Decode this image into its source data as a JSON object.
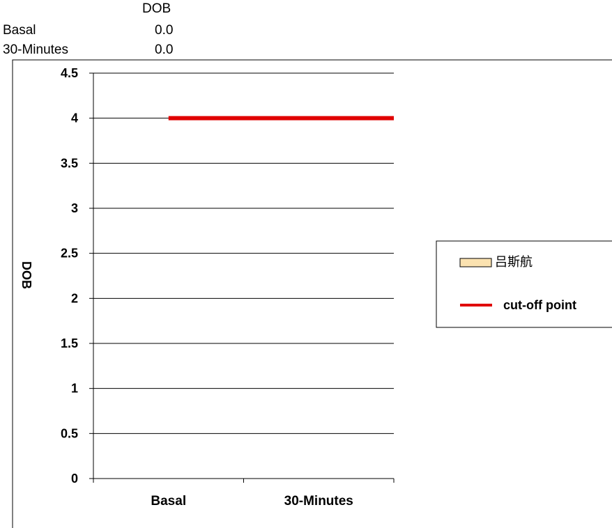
{
  "data_table": {
    "header": "DOB",
    "rows": [
      {
        "label": "Basal",
        "value": "0.0"
      },
      {
        "label": "30-Minutes",
        "value": "0.0"
      }
    ]
  },
  "chart_data": {
    "type": "bar",
    "categories": [
      "Basal",
      "30-Minutes"
    ],
    "series": [
      {
        "name": "吕斯航",
        "values": [
          0.0,
          0.0
        ],
        "color": "#fbe2b0"
      }
    ],
    "reference_line": {
      "name": "cut-off point",
      "value": 4,
      "color": "#e00000"
    },
    "ylabel": "DOB",
    "xlabel": "",
    "ylim": [
      0,
      4.5
    ],
    "yticks": [
      "0",
      "0.5",
      "1",
      "1.5",
      "2",
      "2.5",
      "3",
      "3.5",
      "4",
      "4.5"
    ],
    "grid": true,
    "legend_position": "right"
  }
}
